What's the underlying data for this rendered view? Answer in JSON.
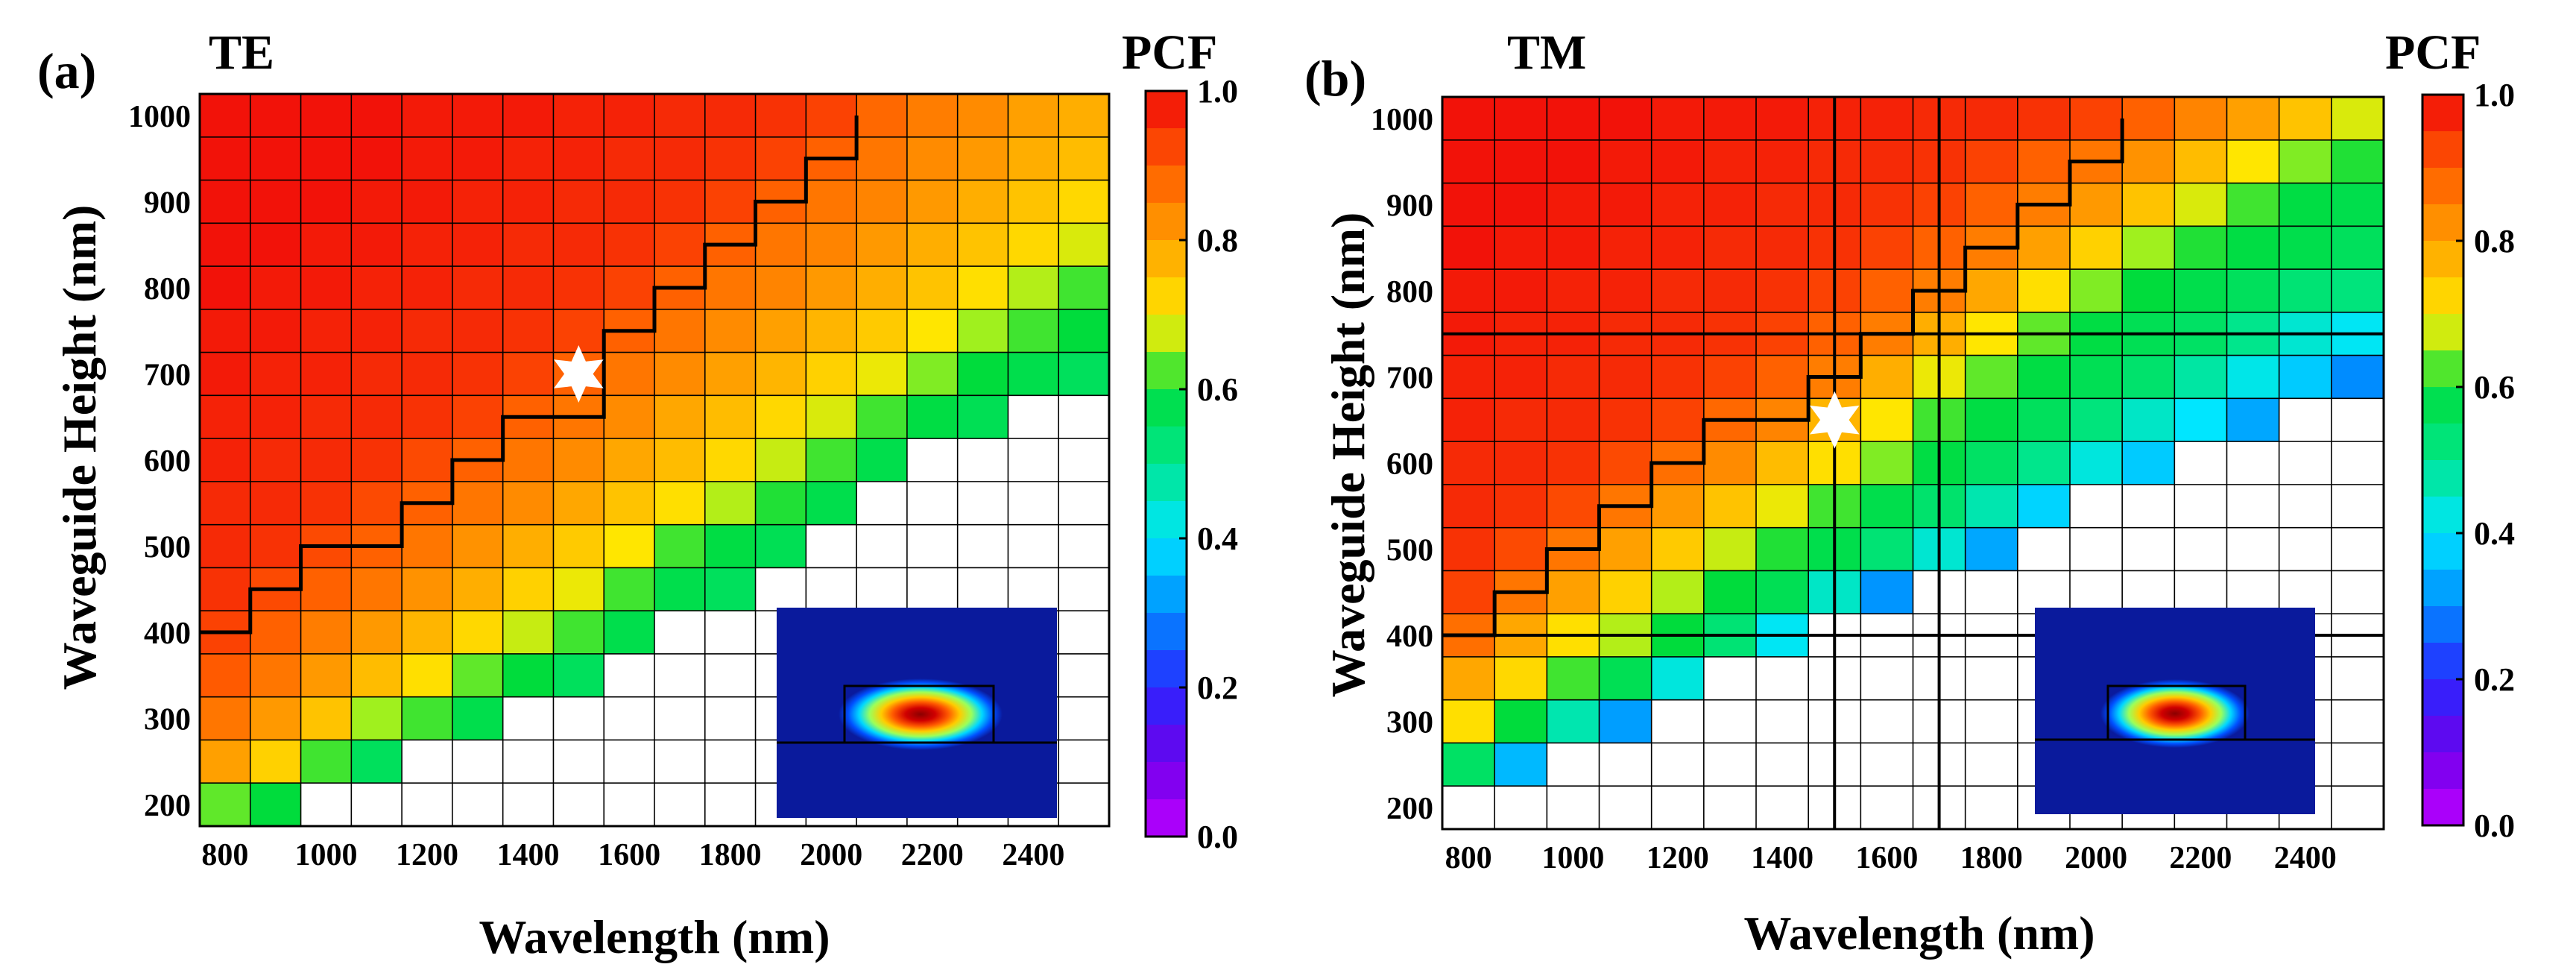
{
  "figure": {
    "panels": [
      {
        "letter": "(a)",
        "mode": "TE",
        "colorbar_title": "PCF",
        "colorbar_ticks": [
          "0.0",
          "0.2",
          "0.4",
          "0.6",
          "0.8",
          "1.0"
        ],
        "xlabel": "Wavelength (nm)",
        "ylabel": "Waveguide Height (nm)",
        "x_ticks": [
          "800",
          "1000",
          "1200",
          "1400",
          "1600",
          "1800",
          "2000",
          "2200",
          "2400"
        ],
        "y_ticks": [
          "200",
          "300",
          "400",
          "500",
          "600",
          "700",
          "800",
          "900",
          "1000"
        ]
      },
      {
        "letter": "(b)",
        "mode": "TM",
        "colorbar_title": "PCF",
        "colorbar_ticks": [
          "0.0",
          "0.2",
          "0.4",
          "0.6",
          "0.8",
          "1.0"
        ],
        "xlabel": "Wavelength (nm)",
        "ylabel": "Waveguide Height (nm)",
        "x_ticks": [
          "800",
          "1000",
          "1200",
          "1400",
          "1600",
          "1800",
          "2000",
          "2200",
          "2400"
        ],
        "y_ticks": [
          "200",
          "300",
          "400",
          "500",
          "600",
          "700",
          "800",
          "900",
          "1000"
        ]
      }
    ]
  },
  "chart_data": [
    {
      "type": "heatmap",
      "title": "TE",
      "xlabel": "Wavelength (nm)",
      "ylabel": "Waveguide Height (nm)",
      "colorbar_label": "PCF",
      "color_range": [
        0.0,
        1.0
      ],
      "x_range": [
        750,
        2550
      ],
      "y_range": [
        200,
        1000
      ],
      "x_step": 100,
      "y_step": 50,
      "x": [
        800,
        900,
        1000,
        1100,
        1200,
        1300,
        1400,
        1500,
        1600,
        1700,
        1800,
        1900,
        2000,
        2100,
        2200,
        2300,
        2400,
        2500
      ],
      "y": [
        1000,
        950,
        900,
        850,
        800,
        750,
        700,
        650,
        600,
        550,
        500,
        450,
        400,
        350,
        300,
        250,
        200
      ],
      "z": [
        [
          0.99,
          0.99,
          0.99,
          0.99,
          0.98,
          0.98,
          0.98,
          0.97,
          0.97,
          0.96,
          0.96,
          0.95,
          0.93,
          0.88,
          0.85,
          0.83,
          0.8,
          0.78
        ],
        [
          0.99,
          0.99,
          0.99,
          0.99,
          0.98,
          0.98,
          0.97,
          0.97,
          0.96,
          0.96,
          0.95,
          0.93,
          0.89,
          0.86,
          0.83,
          0.81,
          0.78,
          0.76
        ],
        [
          0.99,
          0.99,
          0.99,
          0.98,
          0.98,
          0.97,
          0.97,
          0.96,
          0.96,
          0.95,
          0.93,
          0.89,
          0.86,
          0.84,
          0.81,
          0.78,
          0.75,
          0.72
        ],
        [
          0.99,
          0.99,
          0.98,
          0.98,
          0.97,
          0.97,
          0.96,
          0.96,
          0.95,
          0.93,
          0.89,
          0.86,
          0.84,
          0.81,
          0.78,
          0.75,
          0.72,
          0.68
        ],
        [
          0.99,
          0.98,
          0.98,
          0.97,
          0.97,
          0.96,
          0.96,
          0.95,
          0.93,
          0.89,
          0.86,
          0.84,
          0.81,
          0.78,
          0.75,
          0.71,
          0.66,
          0.62
        ],
        [
          0.98,
          0.98,
          0.97,
          0.97,
          0.96,
          0.96,
          0.95,
          0.93,
          0.89,
          0.86,
          0.83,
          0.8,
          0.77,
          0.74,
          0.7,
          0.65,
          0.62,
          0.6
        ],
        [
          0.98,
          0.97,
          0.97,
          0.96,
          0.96,
          0.95,
          0.93,
          0.89,
          0.86,
          0.83,
          0.8,
          0.77,
          0.73,
          0.69,
          0.64,
          0.6,
          0.58,
          0.56
        ],
        [
          0.97,
          0.97,
          0.96,
          0.96,
          0.95,
          0.93,
          0.89,
          0.86,
          0.83,
          0.79,
          0.76,
          0.72,
          0.68,
          0.62,
          0.59,
          0.57,
          null,
          null
        ],
        [
          0.97,
          0.96,
          0.96,
          0.95,
          0.92,
          0.89,
          0.86,
          0.83,
          0.79,
          0.76,
          0.72,
          0.67,
          0.62,
          0.58,
          null,
          null,
          null,
          null
        ],
        [
          0.96,
          0.96,
          0.95,
          0.92,
          0.89,
          0.86,
          0.83,
          0.79,
          0.75,
          0.71,
          0.66,
          0.61,
          0.58,
          null,
          null,
          null,
          null,
          null
        ],
        [
          0.96,
          0.95,
          0.92,
          0.89,
          0.86,
          0.82,
          0.78,
          0.74,
          0.7,
          0.62,
          0.59,
          0.57,
          null,
          null,
          null,
          null,
          null,
          null
        ],
        [
          0.95,
          0.92,
          0.89,
          0.86,
          0.82,
          0.78,
          0.73,
          0.69,
          0.62,
          0.58,
          0.56,
          null,
          null,
          null,
          null,
          null,
          null,
          null
        ],
        [
          0.93,
          0.89,
          0.85,
          0.81,
          0.77,
          0.72,
          0.67,
          0.62,
          0.58,
          null,
          null,
          null,
          null,
          null,
          null,
          null,
          null,
          null
        ],
        [
          0.9,
          0.86,
          0.81,
          0.76,
          0.71,
          0.63,
          0.6,
          0.56,
          null,
          null,
          null,
          null,
          null,
          null,
          null,
          null,
          null,
          null
        ],
        [
          0.86,
          0.81,
          0.75,
          0.65,
          0.62,
          0.58,
          null,
          null,
          null,
          null,
          null,
          null,
          null,
          null,
          null,
          null,
          null,
          null
        ],
        [
          0.8,
          0.73,
          0.62,
          0.56,
          null,
          null,
          null,
          null,
          null,
          null,
          null,
          null,
          null,
          null,
          null,
          null,
          null,
          null
        ],
        [
          0.63,
          0.6,
          null,
          null,
          null,
          null,
          null,
          null,
          null,
          null,
          null,
          null,
          null,
          null,
          null,
          null,
          null,
          null
        ]
      ],
      "boundary_steps": [
        {
          "x": 800,
          "y": 400
        },
        {
          "x": 900,
          "y": 400
        },
        {
          "x": 900,
          "y": 450
        },
        {
          "x": 1000,
          "y": 450
        },
        {
          "x": 1000,
          "y": 500
        },
        {
          "x": 1200,
          "y": 500
        },
        {
          "x": 1200,
          "y": 550
        },
        {
          "x": 1300,
          "y": 550
        },
        {
          "x": 1300,
          "y": 600
        },
        {
          "x": 1400,
          "y": 600
        },
        {
          "x": 1400,
          "y": 650
        },
        {
          "x": 1600,
          "y": 650
        },
        {
          "x": 1600,
          "y": 750
        },
        {
          "x": 1700,
          "y": 750
        },
        {
          "x": 1700,
          "y": 800
        },
        {
          "x": 1800,
          "y": 800
        },
        {
          "x": 1800,
          "y": 850
        },
        {
          "x": 1900,
          "y": 850
        },
        {
          "x": 1900,
          "y": 900
        },
        {
          "x": 2000,
          "y": 900
        },
        {
          "x": 2000,
          "y": 950
        },
        {
          "x": 2100,
          "y": 950
        },
        {
          "x": 2100,
          "y": 1000
        }
      ],
      "marker": {
        "shape": "star",
        "x": 1500,
        "y": 700
      },
      "inset": "mode-profile"
    },
    {
      "type": "heatmap",
      "title": "TM",
      "xlabel": "Wavelength (nm)",
      "ylabel": "Waveguide Height (nm)",
      "colorbar_label": "PCF",
      "color_range": [
        0.0,
        1.0
      ],
      "x_range": [
        750,
        2550
      ],
      "y_range": [
        200,
        1000
      ],
      "x_step": 100,
      "y_step": 50,
      "x": [
        800,
        900,
        1000,
        1100,
        1200,
        1300,
        1400,
        1500,
        1600,
        1700,
        1800,
        1900,
        2000,
        2100,
        2200,
        2300,
        2400,
        2500
      ],
      "y": [
        1000,
        950,
        900,
        850,
        800,
        750,
        700,
        650,
        600,
        550,
        500,
        450,
        400,
        350,
        300,
        250,
        200
      ],
      "z": [
        [
          0.99,
          0.99,
          0.99,
          0.99,
          0.98,
          0.98,
          0.98,
          0.97,
          0.97,
          0.96,
          0.96,
          0.95,
          0.93,
          0.89,
          0.84,
          0.8,
          0.75,
          0.68
        ],
        [
          0.99,
          0.99,
          0.99,
          0.98,
          0.98,
          0.97,
          0.97,
          0.96,
          0.96,
          0.95,
          0.93,
          0.89,
          0.86,
          0.82,
          0.76,
          0.7,
          0.64,
          0.61
        ],
        [
          0.99,
          0.99,
          0.98,
          0.98,
          0.97,
          0.97,
          0.96,
          0.96,
          0.95,
          0.93,
          0.89,
          0.85,
          0.81,
          0.75,
          0.68,
          0.62,
          0.59,
          0.58
        ],
        [
          0.99,
          0.98,
          0.98,
          0.97,
          0.97,
          0.96,
          0.96,
          0.95,
          0.93,
          0.89,
          0.85,
          0.8,
          0.73,
          0.65,
          0.61,
          0.59,
          0.58,
          0.56
        ],
        [
          0.98,
          0.98,
          0.97,
          0.97,
          0.96,
          0.96,
          0.95,
          0.93,
          0.89,
          0.85,
          0.79,
          0.71,
          0.64,
          0.6,
          0.58,
          0.56,
          0.53,
          0.52
        ],
        [
          0.98,
          0.97,
          0.97,
          0.96,
          0.96,
          0.95,
          0.93,
          0.89,
          0.85,
          0.78,
          0.7,
          0.63,
          0.59,
          0.57,
          0.55,
          0.5,
          0.44,
          0.41
        ],
        [
          0.97,
          0.97,
          0.96,
          0.96,
          0.95,
          0.93,
          0.89,
          0.85,
          0.78,
          0.69,
          0.63,
          0.59,
          0.57,
          0.54,
          0.48,
          0.42,
          0.37,
          0.3
        ],
        [
          0.97,
          0.96,
          0.96,
          0.95,
          0.93,
          0.88,
          0.84,
          0.77,
          0.7,
          0.62,
          0.59,
          0.56,
          0.52,
          0.45,
          0.4,
          0.33,
          null,
          null
        ],
        [
          0.96,
          0.96,
          0.95,
          0.92,
          0.87,
          0.83,
          0.76,
          0.71,
          0.64,
          0.59,
          0.55,
          0.5,
          0.43,
          0.37,
          null,
          null,
          null,
          null
        ],
        [
          0.96,
          0.95,
          0.92,
          0.86,
          0.81,
          0.75,
          0.69,
          0.62,
          0.58,
          0.54,
          0.47,
          0.38,
          null,
          null,
          null,
          null,
          null,
          null
        ],
        [
          0.95,
          0.92,
          0.86,
          0.8,
          0.74,
          0.67,
          0.61,
          0.58,
          0.53,
          0.44,
          0.33,
          null,
          null,
          null,
          null,
          null,
          null,
          null
        ],
        [
          0.93,
          0.86,
          0.8,
          0.73,
          0.66,
          0.6,
          0.57,
          0.45,
          0.31,
          null,
          null,
          null,
          null,
          null,
          null,
          null,
          null,
          null
        ],
        [
          0.87,
          0.79,
          0.71,
          0.66,
          0.6,
          0.53,
          0.41,
          null,
          null,
          null,
          null,
          null,
          null,
          null,
          null,
          null,
          null,
          null
        ],
        [
          0.79,
          0.72,
          0.62,
          0.57,
          0.43,
          null,
          null,
          null,
          null,
          null,
          null,
          null,
          null,
          null,
          null,
          null,
          null,
          null
        ],
        [
          0.71,
          0.6,
          0.47,
          0.32,
          null,
          null,
          null,
          null,
          null,
          null,
          null,
          null,
          null,
          null,
          null,
          null,
          null,
          null
        ],
        [
          0.55,
          0.35,
          null,
          null,
          null,
          null,
          null,
          null,
          null,
          null,
          null,
          null,
          null,
          null,
          null,
          null,
          null,
          null
        ],
        [
          null,
          null,
          null,
          null,
          null,
          null,
          null,
          null,
          null,
          null,
          null,
          null,
          null,
          null,
          null,
          null,
          null,
          null
        ]
      ],
      "boundary_steps": [
        {
          "x": 800,
          "y": 400
        },
        {
          "x": 900,
          "y": 400
        },
        {
          "x": 900,
          "y": 450
        },
        {
          "x": 1000,
          "y": 450
        },
        {
          "x": 1000,
          "y": 500
        },
        {
          "x": 1100,
          "y": 500
        },
        {
          "x": 1100,
          "y": 550
        },
        {
          "x": 1200,
          "y": 550
        },
        {
          "x": 1200,
          "y": 600
        },
        {
          "x": 1300,
          "y": 600
        },
        {
          "x": 1300,
          "y": 650
        },
        {
          "x": 1500,
          "y": 650
        },
        {
          "x": 1500,
          "y": 700
        },
        {
          "x": 1600,
          "y": 700
        },
        {
          "x": 1600,
          "y": 750
        },
        {
          "x": 1700,
          "y": 750
        },
        {
          "x": 1700,
          "y": 800
        },
        {
          "x": 1800,
          "y": 800
        },
        {
          "x": 1800,
          "y": 850
        },
        {
          "x": 1900,
          "y": 850
        },
        {
          "x": 1900,
          "y": 900
        },
        {
          "x": 2000,
          "y": 900
        },
        {
          "x": 2000,
          "y": 950
        },
        {
          "x": 2100,
          "y": 950
        },
        {
          "x": 2100,
          "y": 1000
        }
      ],
      "reference_lines": {
        "x": [
          1500,
          1700
        ],
        "y": [
          750,
          400
        ]
      },
      "marker": {
        "shape": "star",
        "x": 1500,
        "y": 650
      },
      "inset": "mode-profile"
    }
  ]
}
